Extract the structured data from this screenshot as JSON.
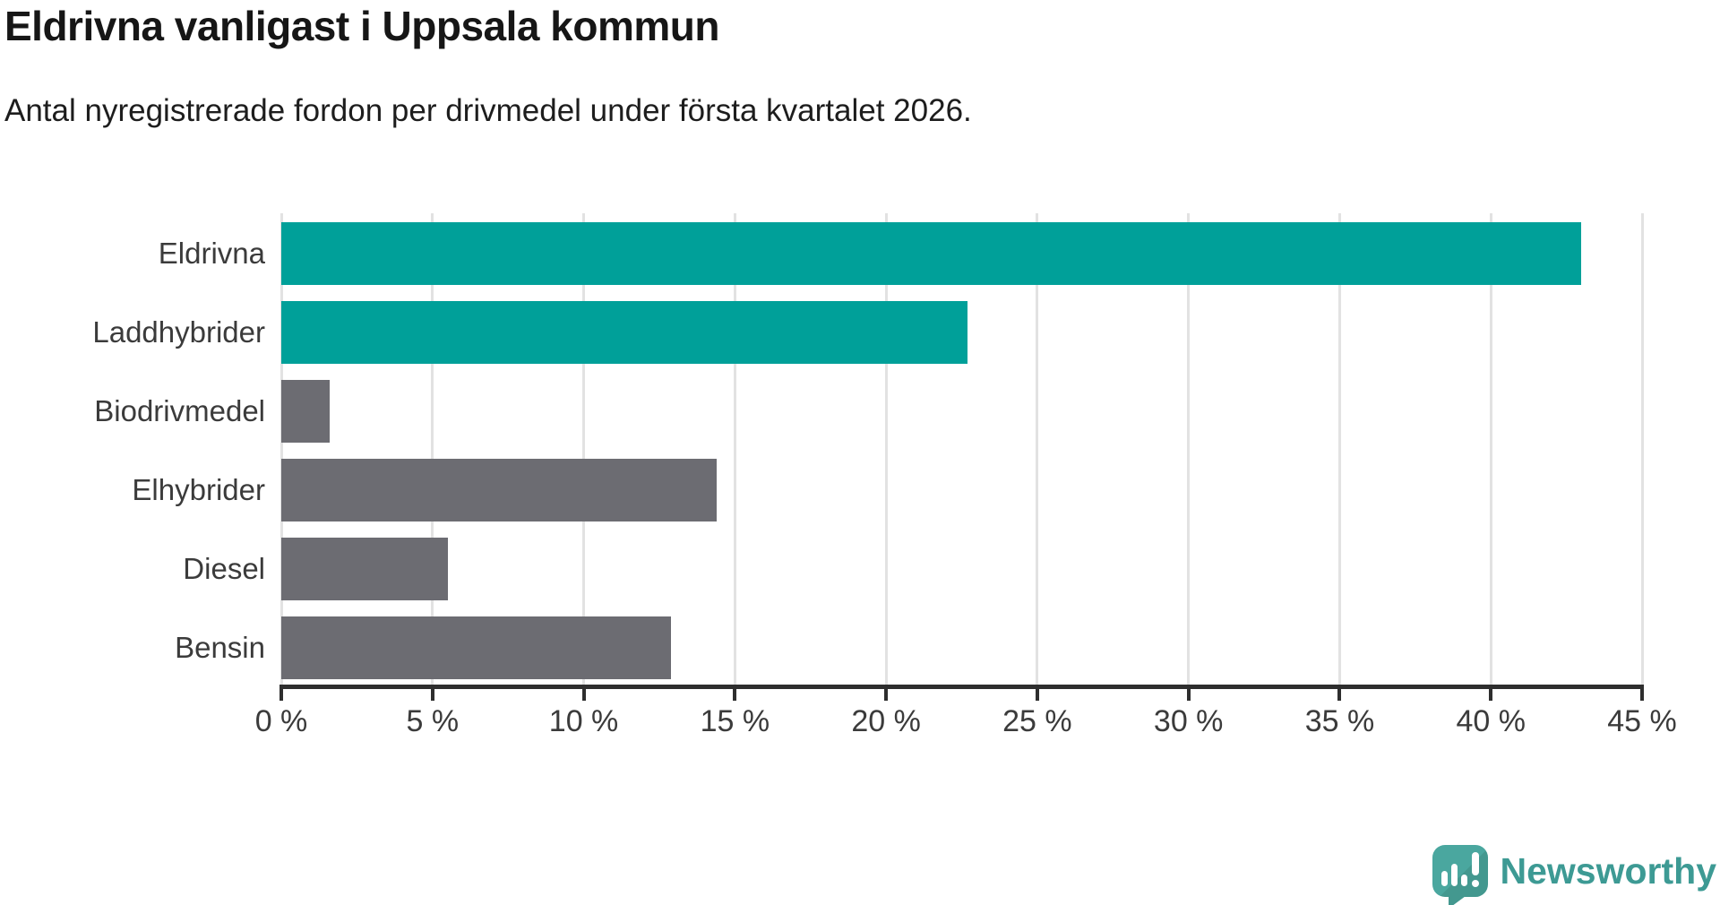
{
  "title": "Eldrivna vanligast i Uppsala kommun",
  "subtitle": "Antal nyregistrerade fordon per drivmedel under första kvartalet 2026.",
  "branding": {
    "label": "Newsworthy",
    "icon": "newsworthy-speech-bubble-chart-icon",
    "text_color": "#3d9a94",
    "icon_color": "#4aa79f"
  },
  "chart_data": {
    "type": "bar",
    "orientation": "horizontal",
    "title": "Eldrivna vanligast i Uppsala kommun",
    "subtitle": "Antal nyregistrerade fordon per drivmedel under första kvartalet 2026.",
    "categories": [
      "Eldrivna",
      "Laddhybrider",
      "Biodrivmedel",
      "Elhybrider",
      "Diesel",
      "Bensin"
    ],
    "values": [
      43,
      22.7,
      1.6,
      14.4,
      5.5,
      12.9
    ],
    "unit": "%",
    "bar_colors": [
      "#00a099",
      "#00a099",
      "#6c6c72",
      "#6c6c72",
      "#6c6c72",
      "#6c6c72"
    ],
    "highlight_color": "#00a099",
    "default_color": "#6c6c72",
    "xlim": [
      0,
      45
    ],
    "x_tick_values": [
      0,
      5,
      10,
      15,
      20,
      25,
      30,
      35,
      40,
      45
    ],
    "x_tick_labels": [
      "0 %",
      "5 %",
      "10 %",
      "15 %",
      "20 %",
      "25 %",
      "30 %",
      "35 %",
      "40 %",
      "45 %"
    ],
    "grid": "vertical-only",
    "gridline_color": "#e2e2e2",
    "axis_color": "#2e2e2e",
    "legend": "none"
  }
}
